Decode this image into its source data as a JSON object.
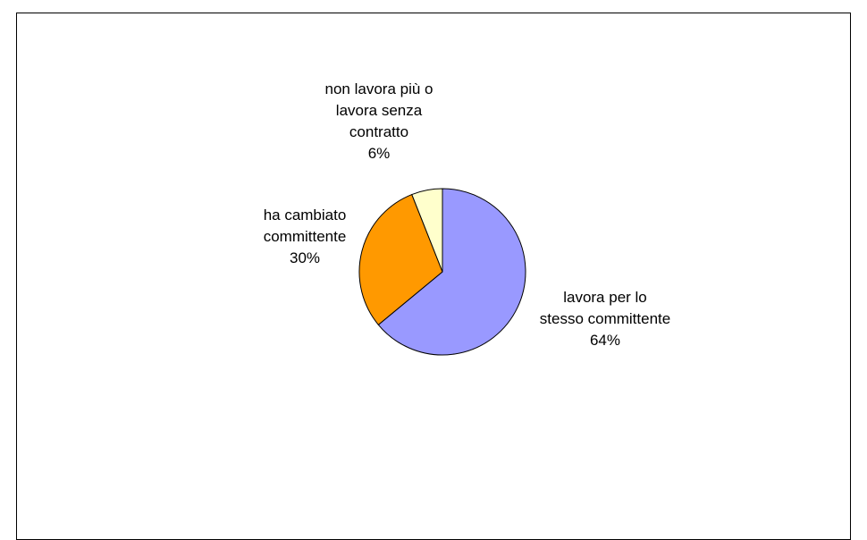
{
  "chart_data": {
    "type": "pie",
    "title": "",
    "start_angle_deg": 0,
    "direction": "clockwise",
    "slices": [
      {
        "label_lines": [
          "lavora per lo",
          "stesso committente"
        ],
        "percent_label": "64%",
        "value": 64,
        "color": "#9999ff"
      },
      {
        "label_lines": [
          "ha cambiato",
          "committente"
        ],
        "percent_label": "30%",
        "value": 30,
        "color": "#ff9900"
      },
      {
        "label_lines": [
          "non lavora più o",
          "lavora senza",
          "contratto"
        ],
        "percent_label": "6%",
        "value": 6,
        "color": "#ffffcc"
      }
    ],
    "legend": "none"
  }
}
